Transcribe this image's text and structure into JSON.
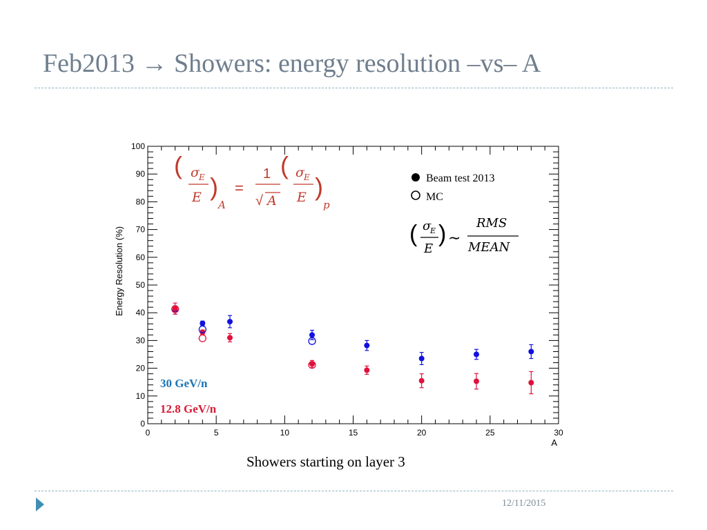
{
  "slide": {
    "title": "Feb2013 → Showers: energy resolution  –vs– A",
    "caption": "Showers starting on layer 3",
    "date": "12/11/2015"
  },
  "chart_data": {
    "type": "scatter",
    "xlabel": "A",
    "ylabel": "Energy Resolution (%)",
    "xlim": [
      0,
      30
    ],
    "ylim": [
      0,
      100
    ],
    "x_ticks": [
      "0",
      "5",
      "10",
      "15",
      "20",
      "25",
      "30"
    ],
    "y_ticks": [
      "0",
      "10",
      "20",
      "30",
      "40",
      "50",
      "60",
      "70",
      "80",
      "90",
      "100"
    ],
    "legend": {
      "position": "top-right",
      "entries": [
        {
          "label": "Beam test 2013",
          "marker": "filled-circle"
        },
        {
          "label": "MC",
          "marker": "open-circle"
        }
      ]
    },
    "energy_labels": [
      {
        "text": "30 GeV/n",
        "color": "#1a76b8"
      },
      {
        "text": "12.8 GeV/n",
        "color": "#d81b35"
      }
    ],
    "formulas": {
      "scaling": {
        "sigma": "σ",
        "sub_e": "E",
        "e": "E",
        "eq": "=",
        "one": "1",
        "sqrt": "√",
        "a": "A",
        "sub_a": "A",
        "sub_p": "p"
      },
      "definition": {
        "sigma": "σ",
        "sub_e": "E",
        "e": "E",
        "tilde": "∼",
        "rms": "RMS",
        "mean": "MEAN"
      }
    },
    "series": [
      {
        "name": "Beam test 2013 - 30 GeV/n",
        "color": "#1010e0",
        "marker": "filled",
        "points": [
          {
            "x": 2,
            "y": 41,
            "err": 1.5
          },
          {
            "x": 4,
            "y": 36.2,
            "err": 0.8
          },
          {
            "x": 6,
            "y": 36.8,
            "err": 2.2
          },
          {
            "x": 12,
            "y": 32,
            "err": 1.7
          },
          {
            "x": 16,
            "y": 28.2,
            "err": 1.8
          },
          {
            "x": 20,
            "y": 23.5,
            "err": 2.2
          },
          {
            "x": 24,
            "y": 25,
            "err": 1.8
          },
          {
            "x": 28,
            "y": 26,
            "err": 2.5
          }
        ]
      },
      {
        "name": "Beam test 2013 - 12.8 GeV/n",
        "color": "#e0103c",
        "marker": "filled",
        "points": [
          {
            "x": 2,
            "y": 41.5,
            "err": 2
          },
          {
            "x": 4,
            "y": 33,
            "err": 0.8
          },
          {
            "x": 6,
            "y": 31,
            "err": 1.5
          },
          {
            "x": 12,
            "y": 21.5,
            "err": 1.3
          },
          {
            "x": 16,
            "y": 19.3,
            "err": 1.5
          },
          {
            "x": 20,
            "y": 15.5,
            "err": 2.5
          },
          {
            "x": 24,
            "y": 15.3,
            "err": 2.8
          },
          {
            "x": 28,
            "y": 14.8,
            "err": 4
          }
        ]
      },
      {
        "name": "MC - 30 GeV/n",
        "color": "#1010e0",
        "marker": "open",
        "points": [
          {
            "x": 4,
            "y": 34
          },
          {
            "x": 12,
            "y": 29.8
          }
        ]
      },
      {
        "name": "MC - 12.8 GeV/n",
        "color": "#e0103c",
        "marker": "open",
        "points": [
          {
            "x": 2,
            "y": 41.3
          },
          {
            "x": 4,
            "y": 30.8
          },
          {
            "x": 12,
            "y": 21.2
          }
        ]
      }
    ]
  }
}
